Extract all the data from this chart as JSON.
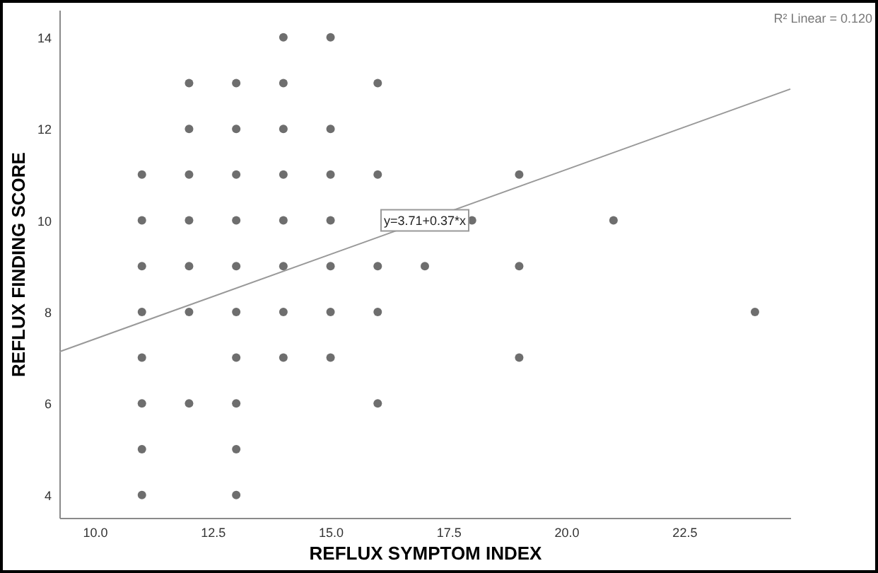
{
  "chart_data": {
    "type": "scatter",
    "xlabel": "REFLUX SYMPTOM INDEX",
    "ylabel": "REFLUX FINDING SCORE",
    "xlim": [
      9.25,
      24.75
    ],
    "ylim": [
      3.5,
      14.6
    ],
    "xticks": [
      {
        "value": 10,
        "label": "10.0"
      },
      12.5,
      {
        "value": 15,
        "label": "15.0"
      },
      17.5,
      {
        "value": 20,
        "label": "20.0"
      },
      22.5
    ],
    "yticks": [
      4,
      6,
      8,
      10,
      12,
      14
    ],
    "grid": false,
    "series": [
      {
        "color": "#6e6e6e",
        "marker": "circle",
        "x": [
          14,
          15,
          12,
          13,
          14,
          16,
          12,
          13,
          14,
          15,
          11,
          12,
          13,
          14,
          15,
          16,
          19,
          11,
          12,
          13,
          14,
          15,
          18,
          21,
          11,
          12,
          13,
          14,
          15,
          16,
          17,
          19,
          11,
          12,
          13,
          14,
          15,
          16,
          24,
          11,
          13,
          14,
          15,
          19,
          11,
          12,
          13,
          16,
          11,
          13,
          11,
          13
        ],
        "values": [
          14,
          14,
          13,
          13,
          13,
          13,
          12,
          12,
          12,
          12,
          11,
          11,
          11,
          11,
          11,
          11,
          11,
          10,
          10,
          10,
          10,
          10,
          10,
          10,
          9,
          9,
          9,
          9,
          9,
          9,
          9,
          9,
          8,
          8,
          8,
          8,
          8,
          8,
          8,
          7,
          7,
          7,
          7,
          7,
          6,
          6,
          6,
          6,
          5,
          5,
          4,
          4
        ]
      },
      {
        "type": "line",
        "color": "#999999",
        "x": [
          9.25,
          24.75
        ],
        "values": [
          7.13,
          12.87
        ]
      }
    ],
    "annotations": [
      {
        "text": "y=3.71+0.37*x",
        "x": 17,
        "y": 10
      },
      "R² Linear = 0.120"
    ]
  }
}
